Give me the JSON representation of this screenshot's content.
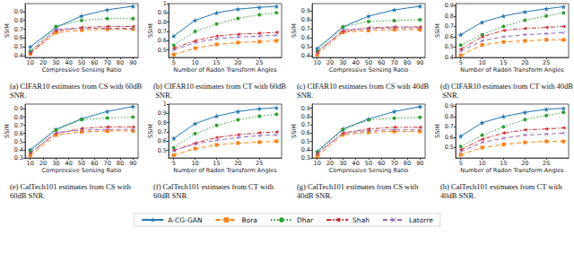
{
  "chart_data": [
    {
      "type": "line",
      "title": "(a) CIFAR10 estimates from CS with 60dB SNR.",
      "x_label": "Compressive Sensing Ratio",
      "y_label": "SSIM",
      "x": [
        10,
        30,
        50,
        70,
        90
      ],
      "xlim": [
        6,
        94
      ],
      "xticks": [
        10,
        20,
        30,
        40,
        50,
        60,
        70,
        80,
        90
      ],
      "ylim": [
        0.38,
        0.99
      ],
      "yticks": [
        0.4,
        0.5,
        0.6,
        0.7,
        0.8,
        0.9
      ],
      "grid": false,
      "legend": "bottom",
      "series": [
        {
          "name": "A-CG-GAN",
          "color": "#1f77b4",
          "marker": "star",
          "line_style": "solid",
          "values": [
            0.5,
            0.72,
            0.85,
            0.92,
            0.96
          ]
        },
        {
          "name": "Bora",
          "color": "#ff7f0e",
          "marker": "square",
          "line_style": "dashed",
          "values": [
            0.42,
            0.66,
            0.69,
            0.7,
            0.7
          ]
        },
        {
          "name": "Dhar",
          "color": "#2ca02c",
          "marker": "circle",
          "line_style": "dotted",
          "values": [
            0.45,
            0.73,
            0.8,
            0.82,
            0.82
          ]
        },
        {
          "name": "Shah",
          "color": "#d62728",
          "marker": "triangle",
          "line_style": "dashdot",
          "values": [
            0.43,
            0.68,
            0.72,
            0.73,
            0.73
          ]
        },
        {
          "name": "Latorre",
          "color": "#9467bd",
          "marker": "x",
          "line_style": "dashed",
          "values": [
            0.44,
            0.7,
            0.71,
            0.71,
            0.71
          ]
        }
      ]
    },
    {
      "type": "line",
      "title": "(b) CIFAR10 estimates from CT with 60dB SNR.",
      "x_label": "Number of Radon Transform Angles",
      "y_label": "SSIM",
      "x": [
        5,
        10,
        15,
        20,
        25,
        29
      ],
      "xlim": [
        3.8,
        30.2
      ],
      "xticks": [
        5,
        10,
        15,
        20,
        25
      ],
      "ylim": [
        0.42,
        1.0
      ],
      "yticks": [
        0.5,
        0.6,
        0.7,
        0.8,
        0.9,
        1.0
      ],
      "grid": false,
      "legend": "bottom",
      "series": [
        {
          "name": "A-CG-GAN",
          "color": "#1f77b4",
          "marker": "star",
          "line_style": "solid",
          "values": [
            0.65,
            0.82,
            0.9,
            0.94,
            0.96,
            0.97
          ]
        },
        {
          "name": "Bora",
          "color": "#ff7f0e",
          "marker": "square",
          "line_style": "dashed",
          "values": [
            0.45,
            0.52,
            0.56,
            0.58,
            0.59,
            0.6
          ]
        },
        {
          "name": "Dhar",
          "color": "#2ca02c",
          "marker": "circle",
          "line_style": "dotted",
          "values": [
            0.55,
            0.7,
            0.78,
            0.84,
            0.88,
            0.9
          ]
        },
        {
          "name": "Shah",
          "color": "#d62728",
          "marker": "triangle",
          "line_style": "dashdot",
          "values": [
            0.52,
            0.6,
            0.65,
            0.67,
            0.68,
            0.69
          ]
        },
        {
          "name": "Latorre",
          "color": "#9467bd",
          "marker": "x",
          "line_style": "dashed",
          "values": [
            0.5,
            0.58,
            0.62,
            0.64,
            0.65,
            0.66
          ]
        }
      ]
    },
    {
      "type": "line",
      "title": "(c) CIFAR10 estimates from CS with 40dB SNR.",
      "x_label": "Compressive Sensing Ratio",
      "y_label": "SSIM",
      "x": [
        10,
        30,
        50,
        70,
        90
      ],
      "xlim": [
        6,
        94
      ],
      "xticks": [
        10,
        20,
        30,
        40,
        50,
        60,
        70,
        80,
        90
      ],
      "ylim": [
        0.38,
        0.98
      ],
      "yticks": [
        0.4,
        0.5,
        0.6,
        0.7,
        0.8,
        0.9
      ],
      "grid": false,
      "legend": "bottom",
      "series": [
        {
          "name": "A-CG-GAN",
          "color": "#1f77b4",
          "marker": "star",
          "line_style": "solid",
          "values": [
            0.48,
            0.72,
            0.84,
            0.91,
            0.95
          ]
        },
        {
          "name": "Bora",
          "color": "#ff7f0e",
          "marker": "square",
          "line_style": "dashed",
          "values": [
            0.41,
            0.66,
            0.68,
            0.69,
            0.69
          ]
        },
        {
          "name": "Dhar",
          "color": "#2ca02c",
          "marker": "circle",
          "line_style": "dotted",
          "values": [
            0.45,
            0.72,
            0.78,
            0.79,
            0.8
          ]
        },
        {
          "name": "Shah",
          "color": "#d62728",
          "marker": "triangle",
          "line_style": "dashdot",
          "values": [
            0.44,
            0.67,
            0.71,
            0.72,
            0.72
          ]
        },
        {
          "name": "Latorre",
          "color": "#9467bd",
          "marker": "x",
          "line_style": "dashed",
          "values": [
            0.43,
            0.69,
            0.7,
            0.71,
            0.71
          ]
        }
      ]
    },
    {
      "type": "line",
      "title": "(d) CIFAR10 estimates from CT with 40dB SNR.",
      "x_label": "Number of Radon Transform Angles",
      "y_label": "SSIM",
      "x": [
        5,
        10,
        15,
        20,
        25,
        29
      ],
      "xlim": [
        3.8,
        30.2
      ],
      "xticks": [
        5,
        10,
        15,
        20,
        25
      ],
      "ylim": [
        0.4,
        0.92
      ],
      "yticks": [
        0.4,
        0.5,
        0.6,
        0.7,
        0.8,
        0.9
      ],
      "grid": false,
      "legend": "bottom",
      "series": [
        {
          "name": "A-CG-GAN",
          "color": "#1f77b4",
          "marker": "star",
          "line_style": "solid",
          "values": [
            0.62,
            0.74,
            0.8,
            0.84,
            0.87,
            0.89
          ]
        },
        {
          "name": "Bora",
          "color": "#ff7f0e",
          "marker": "square",
          "line_style": "dashed",
          "values": [
            0.42,
            0.52,
            0.55,
            0.56,
            0.57,
            0.57
          ]
        },
        {
          "name": "Dhar",
          "color": "#2ca02c",
          "marker": "circle",
          "line_style": "dotted",
          "values": [
            0.52,
            0.62,
            0.7,
            0.76,
            0.8,
            0.83
          ]
        },
        {
          "name": "Shah",
          "color": "#d62728",
          "marker": "triangle",
          "line_style": "dashdot",
          "values": [
            0.48,
            0.6,
            0.66,
            0.68,
            0.69,
            0.7
          ]
        },
        {
          "name": "Latorre",
          "color": "#9467bd",
          "marker": "x",
          "line_style": "dashed",
          "values": [
            0.46,
            0.56,
            0.6,
            0.62,
            0.63,
            0.64
          ]
        }
      ]
    },
    {
      "type": "line",
      "title": "(e) CalTech101 estimates from CS with 60dB SNR.",
      "x_label": "Compressive Sensing Ratio",
      "y_label": "SSIM",
      "x": [
        10,
        30,
        50,
        70,
        90
      ],
      "xlim": [
        6,
        94
      ],
      "xticks": [
        10,
        20,
        30,
        40,
        50,
        60,
        70,
        80,
        90
      ],
      "ylim": [
        0.3,
        0.96
      ],
      "yticks": [
        0.3,
        0.4,
        0.5,
        0.6,
        0.7,
        0.8,
        0.9
      ],
      "grid": false,
      "legend": "bottom",
      "series": [
        {
          "name": "A-CG-GAN",
          "color": "#1f77b4",
          "marker": "star",
          "line_style": "solid",
          "values": [
            0.4,
            0.65,
            0.78,
            0.87,
            0.93
          ]
        },
        {
          "name": "Bora",
          "color": "#ff7f0e",
          "marker": "square",
          "line_style": "dashed",
          "values": [
            0.33,
            0.58,
            0.62,
            0.63,
            0.63
          ]
        },
        {
          "name": "Dhar",
          "color": "#2ca02c",
          "marker": "circle",
          "line_style": "dotted",
          "values": [
            0.38,
            0.64,
            0.77,
            0.79,
            0.8
          ]
        },
        {
          "name": "Shah",
          "color": "#d62728",
          "marker": "triangle",
          "line_style": "dashdot",
          "values": [
            0.36,
            0.6,
            0.66,
            0.68,
            0.68
          ]
        },
        {
          "name": "Latorre",
          "color": "#9467bd",
          "marker": "x",
          "line_style": "dashed",
          "values": [
            0.36,
            0.61,
            0.64,
            0.65,
            0.65
          ]
        }
      ]
    },
    {
      "type": "line",
      "title": "(f) CalTech101 estimates from CT with 60dB SNR.",
      "x_label": "Number of Radon Transform Angles",
      "y_label": "SSIM",
      "x": [
        5,
        10,
        15,
        20,
        25,
        29
      ],
      "xlim": [
        3.8,
        30.2
      ],
      "xticks": [
        5,
        10,
        15,
        20,
        25
      ],
      "ylim": [
        0.42,
        1.0
      ],
      "yticks": [
        0.5,
        0.6,
        0.7,
        0.8,
        0.9,
        1.0
      ],
      "grid": false,
      "legend": "bottom",
      "series": [
        {
          "name": "A-CG-GAN",
          "color": "#1f77b4",
          "marker": "star",
          "line_style": "solid",
          "values": [
            0.63,
            0.79,
            0.87,
            0.92,
            0.95,
            0.96
          ]
        },
        {
          "name": "Bora",
          "color": "#ff7f0e",
          "marker": "square",
          "line_style": "dashed",
          "values": [
            0.45,
            0.52,
            0.56,
            0.58,
            0.59,
            0.6
          ]
        },
        {
          "name": "Dhar",
          "color": "#2ca02c",
          "marker": "circle",
          "line_style": "dotted",
          "values": [
            0.53,
            0.68,
            0.77,
            0.83,
            0.87,
            0.89
          ]
        },
        {
          "name": "Shah",
          "color": "#d62728",
          "marker": "triangle",
          "line_style": "dashdot",
          "values": [
            0.5,
            0.58,
            0.64,
            0.67,
            0.69,
            0.7
          ]
        },
        {
          "name": "Latorre",
          "color": "#9467bd",
          "marker": "x",
          "line_style": "dashed",
          "values": [
            0.5,
            0.57,
            0.61,
            0.64,
            0.66,
            0.67
          ]
        }
      ]
    },
    {
      "type": "line",
      "title": "(g) CalTech101 estimates from CS with 40dB SNR.",
      "x_label": "Compressive Sensing Ratio",
      "y_label": "SSIM",
      "x": [
        10,
        30,
        50,
        70,
        90
      ],
      "xlim": [
        6,
        94
      ],
      "xticks": [
        10,
        20,
        30,
        40,
        50,
        60,
        70,
        80,
        90
      ],
      "ylim": [
        0.3,
        0.95
      ],
      "yticks": [
        0.3,
        0.4,
        0.5,
        0.6,
        0.7,
        0.8,
        0.9
      ],
      "grid": false,
      "legend": "bottom",
      "series": [
        {
          "name": "A-CG-GAN",
          "color": "#1f77b4",
          "marker": "star",
          "line_style": "solid",
          "values": [
            0.38,
            0.65,
            0.77,
            0.86,
            0.92
          ]
        },
        {
          "name": "Bora",
          "color": "#ff7f0e",
          "marker": "square",
          "line_style": "dashed",
          "values": [
            0.32,
            0.58,
            0.61,
            0.62,
            0.62
          ]
        },
        {
          "name": "Dhar",
          "color": "#2ca02c",
          "marker": "circle",
          "line_style": "dotted",
          "values": [
            0.37,
            0.64,
            0.76,
            0.78,
            0.79
          ]
        },
        {
          "name": "Shah",
          "color": "#d62728",
          "marker": "triangle",
          "line_style": "dashdot",
          "values": [
            0.35,
            0.6,
            0.65,
            0.67,
            0.67
          ]
        },
        {
          "name": "Latorre",
          "color": "#9467bd",
          "marker": "x",
          "line_style": "dashed",
          "values": [
            0.35,
            0.6,
            0.63,
            0.64,
            0.64
          ]
        }
      ]
    },
    {
      "type": "line",
      "title": "(h) CalTech101 estimates from CT with 40dB SNR.",
      "x_label": "Number of Radon Transform Angles",
      "y_label": "SSIM",
      "x": [
        5,
        10,
        15,
        20,
        25,
        29
      ],
      "xlim": [
        3.8,
        30.2
      ],
      "xticks": [
        5,
        10,
        15,
        20,
        25
      ],
      "ylim": [
        0.4,
        0.92
      ],
      "yticks": [
        0.5,
        0.6,
        0.7,
        0.8,
        0.9
      ],
      "grid": false,
      "legend": "bottom",
      "series": [
        {
          "name": "A-CG-GAN",
          "color": "#1f77b4",
          "marker": "star",
          "line_style": "solid",
          "values": [
            0.61,
            0.74,
            0.8,
            0.84,
            0.87,
            0.88
          ]
        },
        {
          "name": "Bora",
          "color": "#ff7f0e",
          "marker": "square",
          "line_style": "dashed",
          "values": [
            0.43,
            0.5,
            0.53,
            0.55,
            0.56,
            0.56
          ]
        },
        {
          "name": "Dhar",
          "color": "#2ca02c",
          "marker": "circle",
          "line_style": "dotted",
          "values": [
            0.51,
            0.62,
            0.7,
            0.77,
            0.81,
            0.84
          ]
        },
        {
          "name": "Shah",
          "color": "#d62728",
          "marker": "triangle",
          "line_style": "dashdot",
          "values": [
            0.48,
            0.58,
            0.64,
            0.67,
            0.68,
            0.69
          ]
        },
        {
          "name": "Latorre",
          "color": "#9467bd",
          "marker": "x",
          "line_style": "dashed",
          "values": [
            0.46,
            0.55,
            0.59,
            0.62,
            0.63,
            0.64
          ]
        }
      ]
    }
  ]
}
